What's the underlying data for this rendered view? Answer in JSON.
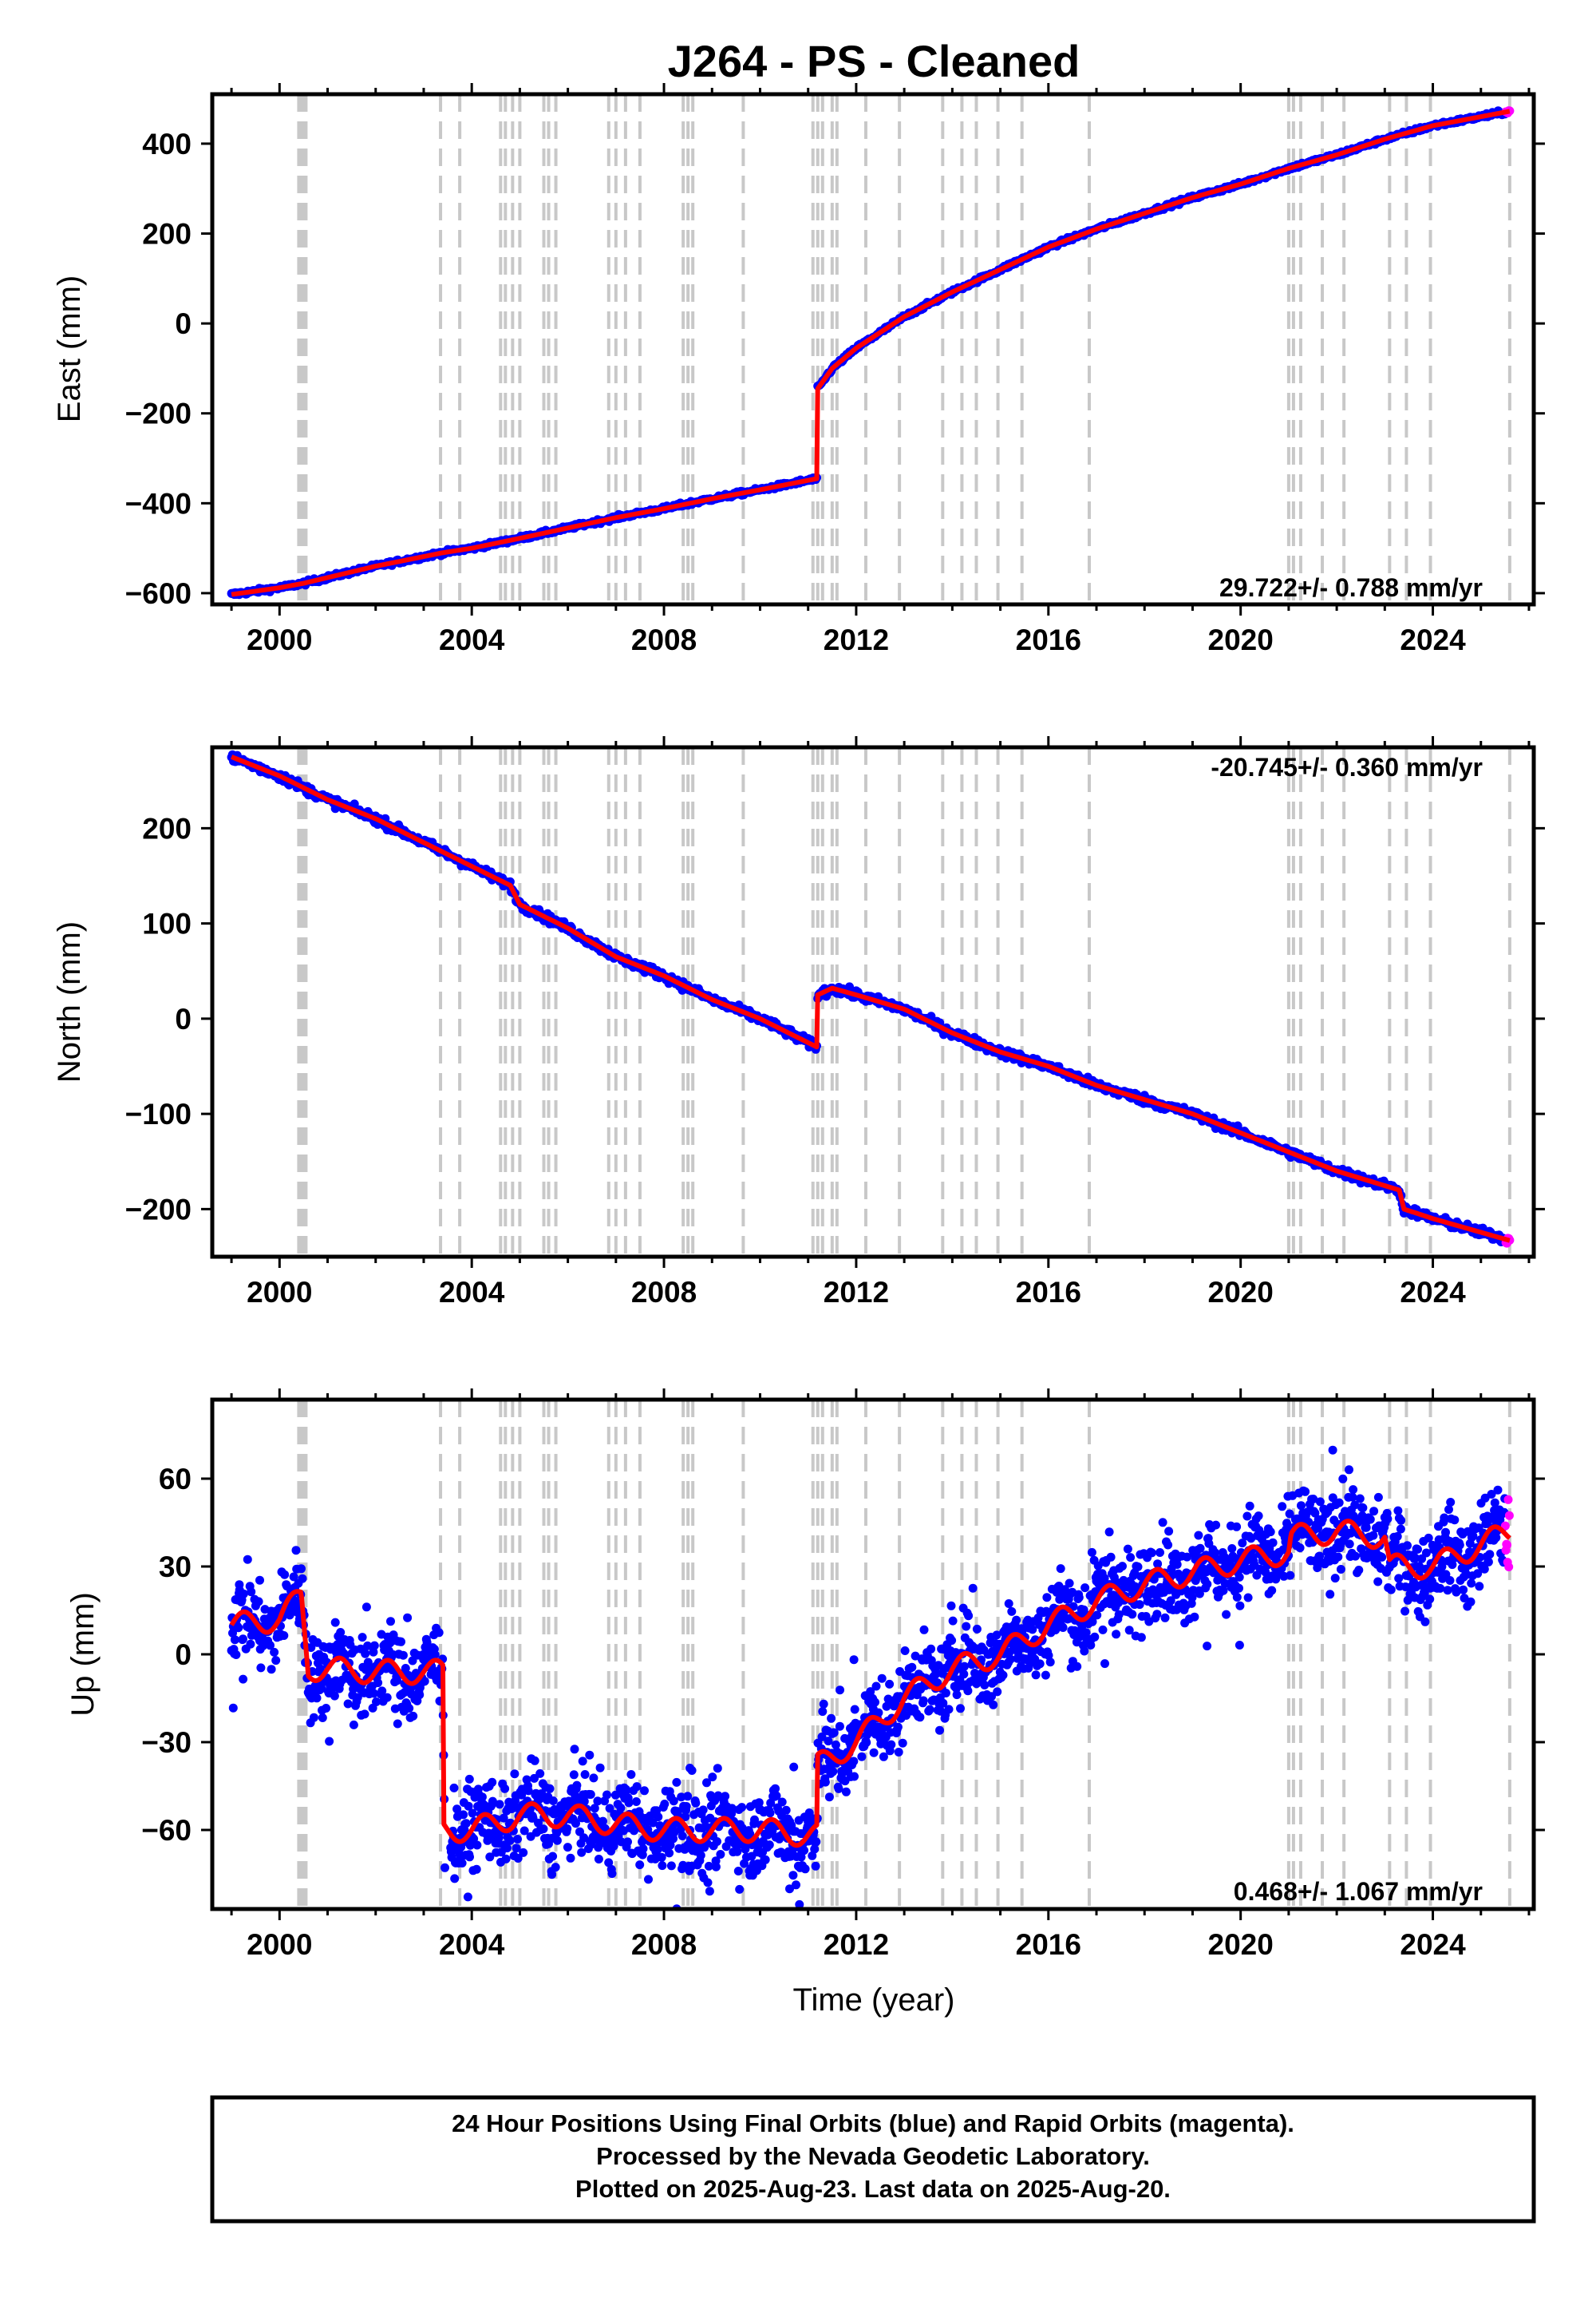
{
  "title": "J264  - PS - Cleaned",
  "xlabel": "Time (year)",
  "footer": {
    "line1": "24 Hour Positions Using Final Orbits (blue) and Rapid Orbits (magenta).",
    "line2": "Processed by the Nevada Geodetic Laboratory.",
    "line3": "Plotted on 2025-Aug-23. Last data on 2025-Aug-20."
  },
  "colors": {
    "final": "#0000ff",
    "rapid": "#ff00ff",
    "model": "#ff0000",
    "events": "#c8c8c8"
  },
  "chart_data": [
    {
      "type": "scatter",
      "ylabel": "East (mm)",
      "xlim": [
        1998.6,
        2026.1
      ],
      "ylim": [
        -625,
        510
      ],
      "xticks": [
        2000,
        2004,
        2008,
        2012,
        2016,
        2020,
        2024
      ],
      "yticks": [
        -600,
        -400,
        -200,
        0,
        200,
        400
      ],
      "rate": "29.722+/- 0.788 mm/yr",
      "rate_position": "bottom-right",
      "series": [
        {
          "points": [
            [
              1999.0,
              -603
            ],
            [
              2000.0,
              -588
            ],
            [
              2000.5,
              -578
            ],
            [
              2002.0,
              -540
            ],
            [
              2003.4,
              -510
            ],
            [
              2004.0,
              -500
            ],
            [
              2005.0,
              -478
            ],
            [
              2006.0,
              -455
            ],
            [
              2007.0,
              -432
            ],
            [
              2008.0,
              -412
            ],
            [
              2009.0,
              -390
            ],
            [
              2010.0,
              -370
            ],
            [
              2011.19,
              -345
            ],
            [
              2011.2,
              -145
            ],
            [
              2011.5,
              -100
            ],
            [
              2012.0,
              -55
            ],
            [
              2013.0,
              15
            ],
            [
              2014.0,
              70
            ],
            [
              2015.0,
              120
            ],
            [
              2016.0,
              170
            ],
            [
              2017.0,
              210
            ],
            [
              2018.0,
              245
            ],
            [
              2019.0,
              280
            ],
            [
              2020.0,
              310
            ],
            [
              2021.0,
              345
            ],
            [
              2022.0,
              375
            ],
            [
              2023.0,
              410
            ],
            [
              2024.0,
              440
            ],
            [
              2025.6,
              472
            ]
          ]
        }
      ]
    },
    {
      "type": "scatter",
      "ylabel": "North (mm)",
      "xlim": [
        1998.6,
        2026.1
      ],
      "ylim": [
        -250,
        285
      ],
      "xticks": [
        2000,
        2004,
        2008,
        2012,
        2016,
        2020,
        2024
      ],
      "yticks": [
        -200,
        -100,
        0,
        100,
        200
      ],
      "rate": "-20.745+/- 0.360 mm/yr",
      "rate_position": "top-right",
      "series": [
        {
          "points": [
            [
              1999.0,
              275
            ],
            [
              2000.0,
              255
            ],
            [
              2001.0,
              230
            ],
            [
              2002.0,
              210
            ],
            [
              2003.0,
              185
            ],
            [
              2004.0,
              160
            ],
            [
              2004.8,
              140
            ],
            [
              2005.0,
              120
            ],
            [
              2006.0,
              95
            ],
            [
              2007.0,
              65
            ],
            [
              2008.0,
              45
            ],
            [
              2009.0,
              20
            ],
            [
              2010.0,
              0
            ],
            [
              2011.19,
              -30
            ],
            [
              2011.2,
              25
            ],
            [
              2011.5,
              32
            ],
            [
              2012.0,
              25
            ],
            [
              2013.0,
              10
            ],
            [
              2014.0,
              -15
            ],
            [
              2015.0,
              -35
            ],
            [
              2016.0,
              -50
            ],
            [
              2017.0,
              -70
            ],
            [
              2018.0,
              -85
            ],
            [
              2019.0,
              -100
            ],
            [
              2020.0,
              -120
            ],
            [
              2021.0,
              -140
            ],
            [
              2022.0,
              -160
            ],
            [
              2023.3,
              -180
            ],
            [
              2023.4,
              -200
            ],
            [
              2024.0,
              -210
            ],
            [
              2025.6,
              -233
            ]
          ]
        }
      ]
    },
    {
      "type": "scatter",
      "ylabel": "Up (mm)",
      "xlim": [
        1998.6,
        2026.1
      ],
      "ylim": [
        -87,
        87
      ],
      "xticks": [
        2000,
        2004,
        2008,
        2012,
        2016,
        2020,
        2024
      ],
      "yticks": [
        -60,
        -30,
        0,
        30,
        60
      ],
      "rate": "0.468+/- 1.067 mm/yr",
      "rate_position": "bottom-right",
      "series": [
        {
          "points": [
            [
              1999.0,
              10
            ],
            [
              2000.0,
              12
            ],
            [
              2000.45,
              20
            ],
            [
              2000.6,
              -5
            ],
            [
              2001.0,
              -5
            ],
            [
              2002.0,
              -6
            ],
            [
              2003.4,
              -6
            ],
            [
              2003.42,
              -60
            ],
            [
              2004.0,
              -60
            ],
            [
              2005.0,
              -55
            ],
            [
              2006.0,
              -55
            ],
            [
              2007.0,
              -58
            ],
            [
              2008.0,
              -60
            ],
            [
              2009.0,
              -60
            ],
            [
              2010.0,
              -60
            ],
            [
              2011.19,
              -62
            ],
            [
              2011.2,
              -38
            ],
            [
              2012.0,
              -30
            ],
            [
              2013.0,
              -15
            ],
            [
              2014.0,
              -5
            ],
            [
              2015.0,
              0
            ],
            [
              2016.0,
              10
            ],
            [
              2017.0,
              18
            ],
            [
              2018.0,
              24
            ],
            [
              2019.0,
              28
            ],
            [
              2020.0,
              32
            ],
            [
              2021.0,
              35
            ],
            [
              2021.05,
              40
            ],
            [
              2022.0,
              42
            ],
            [
              2023.0,
              40
            ],
            [
              2023.1,
              30
            ],
            [
              2024.0,
              30
            ],
            [
              2025.6,
              42
            ]
          ]
        }
      ]
    }
  ],
  "event_lines": [
    2000.4,
    2000.45,
    2000.5,
    2000.55,
    2003.35,
    2003.75,
    2004.6,
    2004.7,
    2004.85,
    2005.0,
    2005.5,
    2005.6,
    2005.75,
    2006.85,
    2007.0,
    2007.2,
    2007.5,
    2008.4,
    2008.5,
    2008.6,
    2009.65,
    2011.1,
    2011.2,
    2011.3,
    2011.5,
    2011.6,
    2012.2,
    2012.9,
    2013.8,
    2014.2,
    2014.5,
    2014.95,
    2015.45,
    2016.85,
    2021.0,
    2021.1,
    2021.25,
    2021.7,
    2022.15,
    2023.1,
    2023.45,
    2023.95,
    2025.6
  ],
  "rapid_points": [
    [
      2025.5,
      2025.63
    ]
  ]
}
